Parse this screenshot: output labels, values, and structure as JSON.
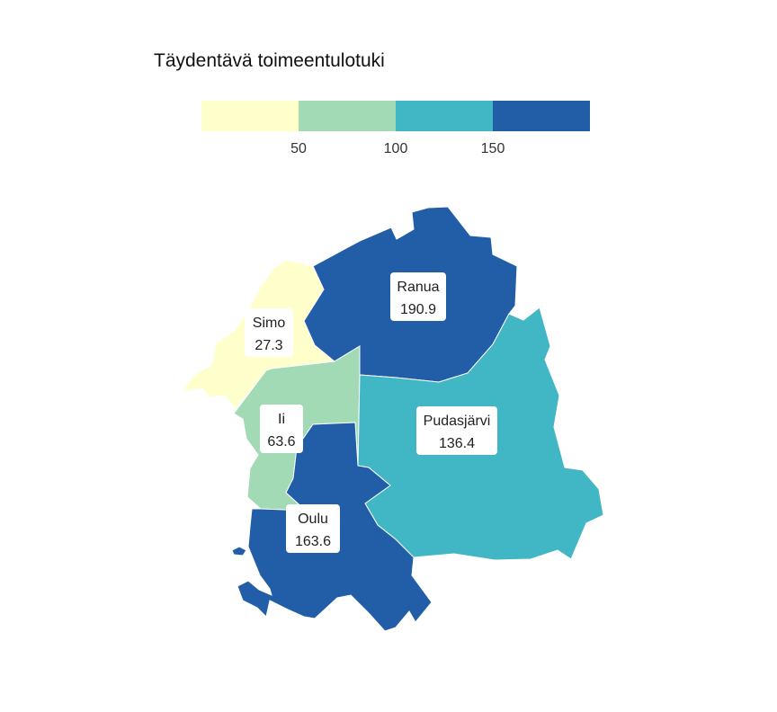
{
  "legend": {
    "title": "Täydentävä toimeentulotuki",
    "ticks": [
      "50",
      "100",
      "150"
    ],
    "bin_colors": [
      "#ffffcc",
      "#a1dab4",
      "#41b6c4",
      "#225ea8"
    ]
  },
  "regions": [
    {
      "name": "Simo",
      "value": "27.3",
      "color": "#ffffcc"
    },
    {
      "name": "Ranua",
      "value": "190.9",
      "color": "#225ea8"
    },
    {
      "name": "Ii",
      "value": "63.6",
      "color": "#a1dab4"
    },
    {
      "name": "Pudasjärvi",
      "value": "136.4",
      "color": "#41b6c4"
    },
    {
      "name": "Oulu",
      "value": "163.6",
      "color": "#225ea8"
    }
  ]
}
